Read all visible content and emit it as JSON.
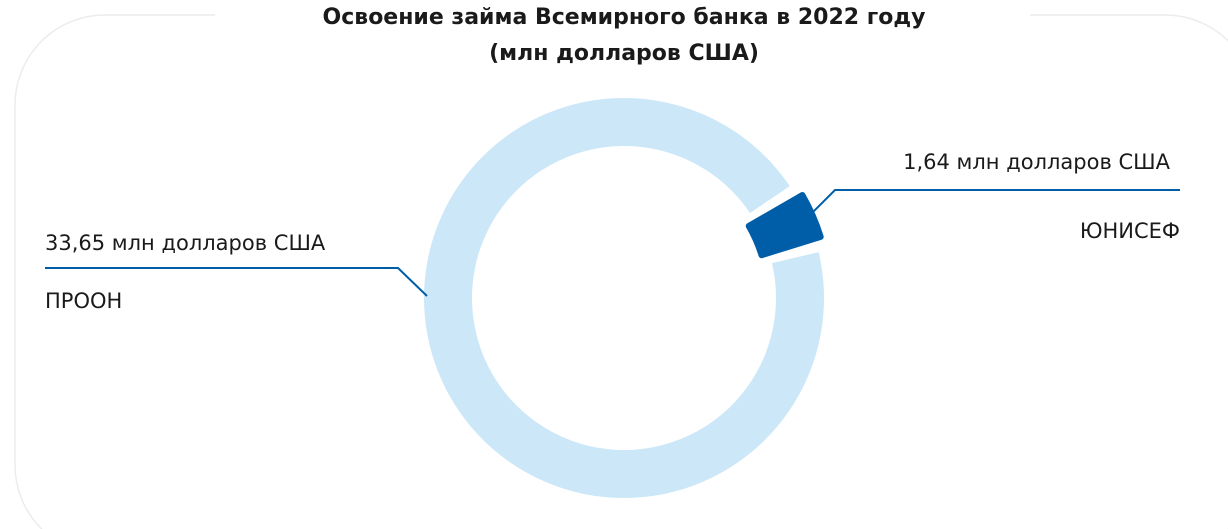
{
  "chart_data": {
    "type": "pie",
    "title": "Освоение займа Всемирного банка в 2022 году",
    "subtitle": "(млн долларов США)",
    "categories": [
      "ПРООН",
      "ЮНИСЕФ"
    ],
    "values": [
      33.65,
      1.64
    ],
    "value_labels": [
      "33,65 млн долларов США",
      "1,64 млн долларов США"
    ],
    "colors": [
      "#cce8f8",
      "#005ea8"
    ]
  }
}
